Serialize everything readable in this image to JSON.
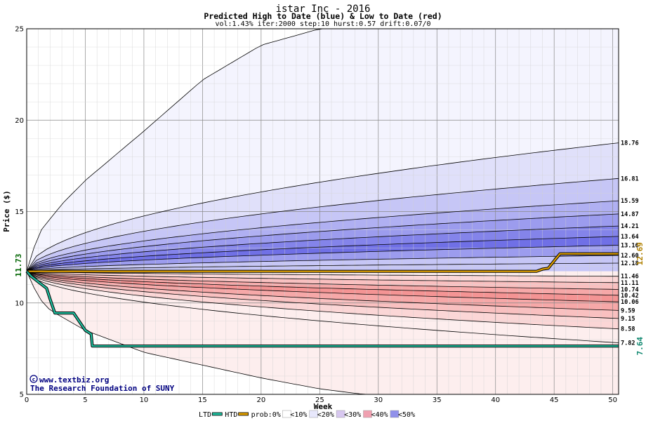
{
  "chart_data": {
    "type": "area",
    "title": "istar Inc - 2016",
    "subtitle": "Predicted High to Date (blue) &  Low to Date (red)",
    "params": "vol:1.43% iter:2000 step:10 hurst:0.57 drift:0.07/0",
    "xlabel": "Week",
    "ylabel": "Price ($)",
    "xlim": [
      0,
      50.5
    ],
    "ylim": [
      5,
      25
    ],
    "x_ticks": [
      0,
      5,
      10,
      15,
      20,
      25,
      30,
      35,
      40,
      45,
      50
    ],
    "y_ticks": [
      5,
      10,
      15,
      20,
      25
    ],
    "start_price": 11.73,
    "start_label": "11.73",
    "upper_quantiles": [
      {
        "end": 18.76,
        "label": "18.76"
      },
      {
        "end": 16.81,
        "label": "16.81"
      },
      {
        "end": 15.59,
        "label": "15.59"
      },
      {
        "end": 14.87,
        "label": "14.87"
      },
      {
        "end": 14.21,
        "label": "14.21"
      },
      {
        "end": 13.64,
        "label": "13.64"
      },
      {
        "end": 13.16,
        "label": "13.16"
      },
      {
        "end": 12.6,
        "label": "12.60"
      },
      {
        "end": 12.18,
        "label": "12.18"
      }
    ],
    "lower_quantiles": [
      {
        "end": 11.46,
        "label": "11.46"
      },
      {
        "end": 11.11,
        "label": "11.11"
      },
      {
        "end": 10.74,
        "label": "10.74"
      },
      {
        "end": 10.42,
        "label": "10.42"
      },
      {
        "end": 10.06,
        "label": "10.06"
      },
      {
        "end": 9.59,
        "label": "9.59"
      },
      {
        "end": 9.15,
        "label": "9.15"
      },
      {
        "end": 8.58,
        "label": "8.58"
      },
      {
        "end": 7.82,
        "label": "7.82"
      }
    ],
    "outer_high_points": [
      [
        0,
        11.73
      ],
      [
        1,
        13.8
      ],
      [
        3,
        15.4
      ],
      [
        5,
        16.7
      ],
      [
        10,
        19.4
      ],
      [
        15,
        22.2
      ],
      [
        20,
        24.1
      ],
      [
        25,
        25.0
      ]
    ],
    "outer_low_points": [
      [
        0,
        11.73
      ],
      [
        1,
        10.3
      ],
      [
        2,
        9.6
      ],
      [
        5,
        8.5
      ],
      [
        10,
        7.3
      ],
      [
        15,
        6.6
      ],
      [
        20,
        5.9
      ],
      [
        25,
        5.3
      ],
      [
        30,
        4.9
      ]
    ],
    "htd_series": {
      "name": "HTD",
      "color": "#e0a000",
      "points": [
        [
          0,
          11.73
        ],
        [
          43.5,
          11.73
        ],
        [
          44,
          11.85
        ],
        [
          44.5,
          11.9
        ],
        [
          45,
          12.3
        ],
        [
          45.5,
          12.69
        ],
        [
          50.5,
          12.69
        ]
      ],
      "end_label": "12.69"
    },
    "ltd_series": {
      "name": "LTD",
      "color": "#20c0a0",
      "points": [
        [
          0,
          11.73
        ],
        [
          0.4,
          11.45
        ],
        [
          1.2,
          11.05
        ],
        [
          1.7,
          10.8
        ],
        [
          2.0,
          10.2
        ],
        [
          2.4,
          9.45
        ],
        [
          3.6,
          9.45
        ],
        [
          4.0,
          9.45
        ],
        [
          5.0,
          8.5
        ],
        [
          5.5,
          8.3
        ],
        [
          5.6,
          7.64
        ],
        [
          50.5,
          7.64
        ]
      ],
      "end_label": "7.64"
    },
    "band_colors_upper": [
      "#f4f4fe",
      "#e0e0fa",
      "#c6c6f6",
      "#b0b0f2",
      "#9c9cee",
      "#8484ea",
      "#7070e6",
      "#9c9cee",
      "#c6c6f6"
    ],
    "band_colors_lower": [
      "#fdeeee",
      "#fbd6d6",
      "#f9c0c0",
      "#f6a8a8",
      "#f49494",
      "#f6a8a8",
      "#f9c0c0",
      "#fbd6d6",
      "#fdeeee"
    ],
    "grid": true
  },
  "credits": {
    "line1": "www.textbiz.org",
    "line2": "The Research Foundation of SUNY",
    "copyright": "©"
  },
  "legend": {
    "items": [
      {
        "label": "LTD",
        "kind": "line",
        "color": "#20c0a0"
      },
      {
        "label": "HTD",
        "kind": "line",
        "color": "#e0a000"
      },
      {
        "label": "prob:0%",
        "kind": "text",
        "color": ""
      },
      {
        "label": "<10%",
        "kind": "swatch",
        "color": "#ffffff"
      },
      {
        "label": "<20%",
        "kind": "swatch",
        "color": "#e8e8fc"
      },
      {
        "label": "<30%",
        "kind": "swatch",
        "color": "#d8c8f0"
      },
      {
        "label": "<40%",
        "kind": "swatch",
        "color": "#f0a0b0"
      },
      {
        "label": "<50%",
        "kind": "swatch",
        "color": "#9090ea"
      }
    ]
  }
}
